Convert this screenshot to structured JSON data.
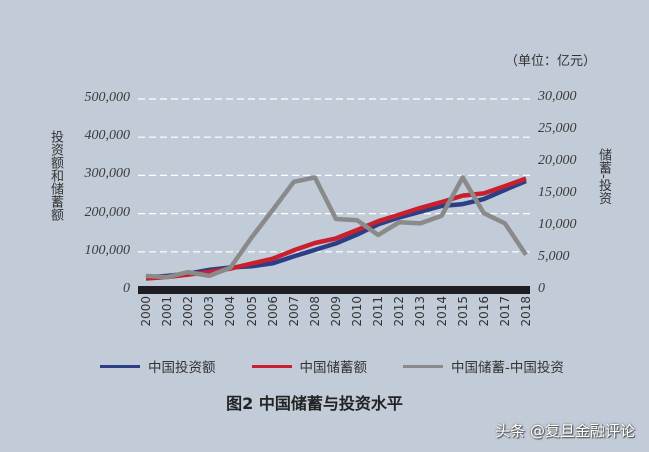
{
  "unit_label": "（单位：亿元）",
  "left_axis": {
    "label": "投资额和储蓄额",
    "ticks": [
      "500,000",
      "400,000",
      "300,000",
      "200,000",
      "100,000",
      "0"
    ]
  },
  "right_axis": {
    "label": "储蓄-投资",
    "ticks": [
      "30,000",
      "25,000",
      "20,000",
      "15,000",
      "10,000",
      "5,000",
      "0"
    ]
  },
  "legend": [
    {
      "label": "中国投资额",
      "color": "#2b3f86"
    },
    {
      "label": "中国储蓄额",
      "color": "#c8202f"
    },
    {
      "label": "中国储蓄-中国投资",
      "color": "#8a8a8a"
    }
  ],
  "title": "图2 中国储蓄与投资水平",
  "watermark": "头条 @复旦金融评论",
  "chart_data": {
    "type": "line",
    "title": "图2 中国储蓄与投资水平",
    "xlabel": "",
    "ylabel": "投资额和储蓄额",
    "y2label": "储蓄-投资",
    "unit": "亿元",
    "ylim": [
      0,
      500000
    ],
    "y2lim": [
      0,
      30000
    ],
    "grid": true,
    "legend_position": "bottom",
    "categories": [
      "2000",
      "2001",
      "2002",
      "2003",
      "2004",
      "2005",
      "2006",
      "2007",
      "2008",
      "2009",
      "2010",
      "2011",
      "2012",
      "2013",
      "2014",
      "2015",
      "2016",
      "2017",
      "2018"
    ],
    "series": [
      {
        "name": "中国投资额",
        "axis": "left",
        "color": "#2b3f86",
        "values": [
          33000,
          37000,
          43000,
          53000,
          59000,
          62000,
          70000,
          88000,
          105000,
          122000,
          145000,
          172000,
          190000,
          205000,
          220000,
          225000,
          238000,
          262000,
          285000
        ]
      },
      {
        "name": "中国储蓄额",
        "axis": "left",
        "color": "#c8202f",
        "values": [
          30000,
          34000,
          40000,
          47000,
          56000,
          69000,
          82000,
          104000,
          123000,
          135000,
          157000,
          180000,
          197000,
          215000,
          230000,
          247000,
          253000,
          272000,
          292000
        ]
      },
      {
        "name": "中国储蓄-中国投资",
        "axis": "right",
        "color": "#8a8a8a",
        "values": [
          2200,
          2000,
          2800,
          2200,
          3500,
          8200,
          12500,
          16900,
          17600,
          11100,
          10900,
          8600,
          10600,
          10400,
          11600,
          17600,
          12000,
          10400,
          5500
        ]
      }
    ]
  }
}
